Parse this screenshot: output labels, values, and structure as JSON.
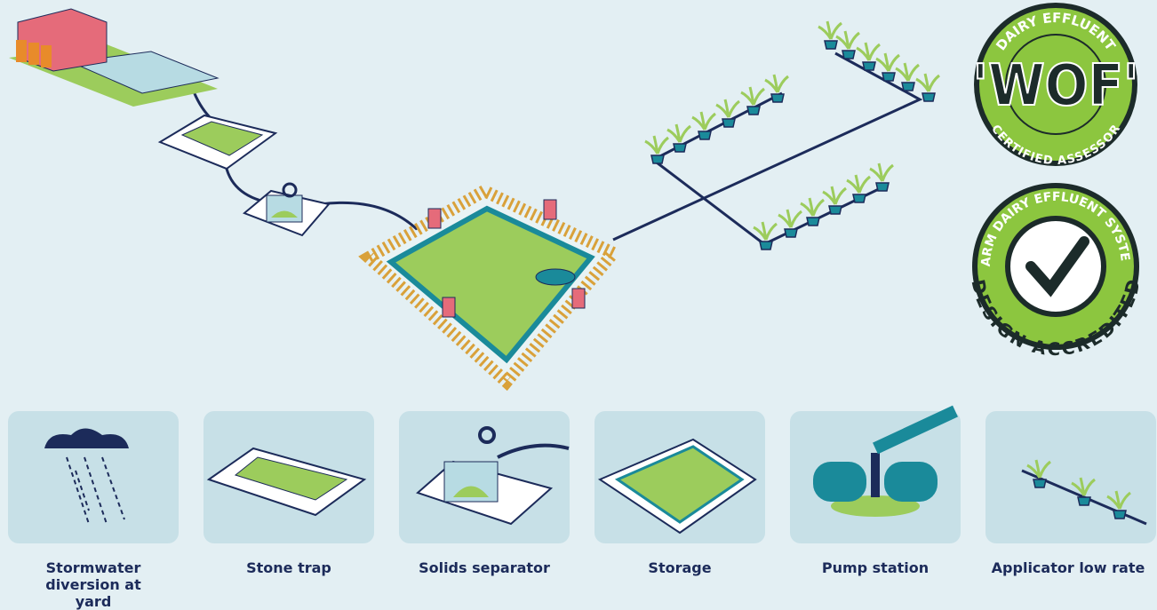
{
  "badges": [
    {
      "top": "DAIRY EFFLUENT",
      "main": "'WOF'",
      "bottom": "CERTIFIED ASSESSOR"
    },
    {
      "top": "FARM DAIRY EFFLUENT SYSTEM",
      "bottom": "DESIGN ACCREDITED"
    }
  ],
  "steps": [
    {
      "label": "Stormwater diversion at yard"
    },
    {
      "label": "Stone trap"
    },
    {
      "label": "Solids separator"
    },
    {
      "label": "Storage"
    },
    {
      "label": "Pump station"
    },
    {
      "label": "Applicator low rate"
    }
  ]
}
